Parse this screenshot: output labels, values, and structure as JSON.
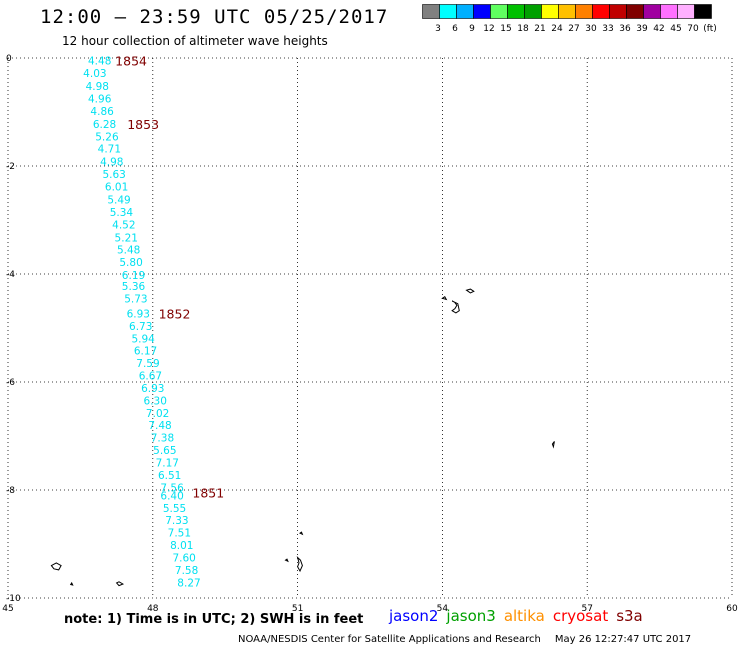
{
  "header": {
    "title": "12:00 – 23:59 UTC 05/25/2017",
    "subtitle": "12 hour collection of altimeter wave heights"
  },
  "legend": {
    "colors": [
      "#808080",
      "#00ffff",
      "#00b0ff",
      "#0000ff",
      "#60ff60",
      "#00c000",
      "#00a000",
      "#ffff00",
      "#ffc000",
      "#ff8000",
      "#ff0000",
      "#c00000",
      "#800000",
      "#a000a0",
      "#ff70ff",
      "#ffb0ff",
      "#000000"
    ],
    "labels": [
      "3",
      "6",
      "9",
      "12",
      "15",
      "18",
      "21",
      "24",
      "27",
      "30",
      "33",
      "36",
      "39",
      "42",
      "45",
      "70",
      "(ft)"
    ]
  },
  "chart_data": {
    "type": "scatter",
    "xlim": [
      45,
      60
    ],
    "ylim": [
      -10,
      0
    ],
    "xticks": [
      "45",
      "48",
      "51",
      "54",
      "57",
      "60"
    ],
    "yticks": [
      "0",
      "-2",
      "-4",
      "-6",
      "-8",
      "-10"
    ],
    "grid": true,
    "track_color": "#00e0f0",
    "time_color": "#800000",
    "points": [
      {
        "x": 46.9,
        "y": -0.05,
        "v": "4.48"
      },
      {
        "x": 46.8,
        "y": -0.28,
        "v": "4.03"
      },
      {
        "x": 46.85,
        "y": -0.52,
        "v": "4.98"
      },
      {
        "x": 46.9,
        "y": -0.75,
        "v": "4.96"
      },
      {
        "x": 46.95,
        "y": -0.98,
        "v": "4.86"
      },
      {
        "x": 47.0,
        "y": -1.22,
        "v": "6.28"
      },
      {
        "x": 47.05,
        "y": -1.45,
        "v": "5.26"
      },
      {
        "x": 47.1,
        "y": -1.68,
        "v": "4.71"
      },
      {
        "x": 47.15,
        "y": -1.92,
        "v": "4.98"
      },
      {
        "x": 47.2,
        "y": -2.15,
        "v": "5.63"
      },
      {
        "x": 47.25,
        "y": -2.38,
        "v": "6.01"
      },
      {
        "x": 47.3,
        "y": -2.62,
        "v": "5.49"
      },
      {
        "x": 47.35,
        "y": -2.85,
        "v": "5.34"
      },
      {
        "x": 47.4,
        "y": -3.08,
        "v": "4.52"
      },
      {
        "x": 47.45,
        "y": -3.32,
        "v": "5.21"
      },
      {
        "x": 47.5,
        "y": -3.55,
        "v": "5.48"
      },
      {
        "x": 47.55,
        "y": -3.78,
        "v": "5.80"
      },
      {
        "x": 47.6,
        "y": -4.02,
        "v": "6.19"
      },
      {
        "x": 47.6,
        "y": -4.22,
        "v": "5.36"
      },
      {
        "x": 47.65,
        "y": -4.45,
        "v": "5.73"
      },
      {
        "x": 47.7,
        "y": -4.73,
        "v": "6.93"
      },
      {
        "x": 47.75,
        "y": -4.96,
        "v": "6.73"
      },
      {
        "x": 47.8,
        "y": -5.19,
        "v": "5.94"
      },
      {
        "x": 47.85,
        "y": -5.42,
        "v": "6.17"
      },
      {
        "x": 47.9,
        "y": -5.65,
        "v": "7.59"
      },
      {
        "x": 47.95,
        "y": -5.88,
        "v": "6.67"
      },
      {
        "x": 48.0,
        "y": -6.11,
        "v": "6.93"
      },
      {
        "x": 48.05,
        "y": -6.34,
        "v": "6.30"
      },
      {
        "x": 48.1,
        "y": -6.57,
        "v": "7.02"
      },
      {
        "x": 48.15,
        "y": -6.8,
        "v": "7.48"
      },
      {
        "x": 48.2,
        "y": -7.03,
        "v": "7.38"
      },
      {
        "x": 48.25,
        "y": -7.26,
        "v": "5.65"
      },
      {
        "x": 48.3,
        "y": -7.49,
        "v": "7.17"
      },
      {
        "x": 48.35,
        "y": -7.72,
        "v": "6.51"
      },
      {
        "x": 48.4,
        "y": -7.95,
        "v": "7.56"
      },
      {
        "x": 48.4,
        "y": -8.1,
        "v": "6.40"
      },
      {
        "x": 48.45,
        "y": -8.33,
        "v": "5.55"
      },
      {
        "x": 48.5,
        "y": -8.56,
        "v": "7.33"
      },
      {
        "x": 48.55,
        "y": -8.79,
        "v": "7.51"
      },
      {
        "x": 48.6,
        "y": -9.02,
        "v": "8.01"
      },
      {
        "x": 48.65,
        "y": -9.25,
        "v": "7.60"
      },
      {
        "x": 48.7,
        "y": -9.48,
        "v": "7.58"
      },
      {
        "x": 48.75,
        "y": -9.71,
        "v": "8.27"
      }
    ],
    "time_labels": [
      {
        "x": 47.55,
        "y": -0.05,
        "t": "1854"
      },
      {
        "x": 47.8,
        "y": -1.22,
        "t": "1853"
      },
      {
        "x": 48.45,
        "y": -4.73,
        "t": "1852"
      },
      {
        "x": 49.15,
        "y": -8.05,
        "t": "1851"
      }
    ]
  },
  "islands": [
    [
      [
        45.9,
        -9.4
      ],
      [
        46.0,
        -9.35
      ],
      [
        46.1,
        -9.4
      ],
      [
        46.05,
        -9.48
      ],
      [
        45.95,
        -9.46
      ]
    ],
    [
      [
        46.3,
        -9.75
      ],
      [
        46.32,
        -9.72
      ],
      [
        46.34,
        -9.76
      ]
    ],
    [
      [
        47.25,
        -9.72
      ],
      [
        47.3,
        -9.7
      ],
      [
        47.38,
        -9.74
      ],
      [
        47.3,
        -9.77
      ]
    ],
    [
      [
        51.0,
        -9.25
      ],
      [
        51.06,
        -9.3
      ],
      [
        51.1,
        -9.4
      ],
      [
        51.05,
        -9.5
      ],
      [
        51.0,
        -9.42
      ],
      [
        51.03,
        -9.35
      ]
    ],
    [
      [
        50.75,
        -9.3
      ],
      [
        50.78,
        -9.28
      ],
      [
        50.8,
        -9.32
      ]
    ],
    [
      [
        51.05,
        -8.8
      ],
      [
        51.08,
        -8.78
      ],
      [
        51.1,
        -8.82
      ]
    ],
    [
      [
        54.2,
        -4.5
      ],
      [
        54.25,
        -4.52
      ],
      [
        54.3,
        -4.58
      ],
      [
        54.26,
        -4.64
      ],
      [
        54.2,
        -4.68
      ],
      [
        54.28,
        -4.72
      ],
      [
        54.35,
        -4.68
      ],
      [
        54.32,
        -4.55
      ]
    ],
    [
      [
        54.0,
        -4.45
      ],
      [
        54.05,
        -4.42
      ],
      [
        54.08,
        -4.47
      ]
    ],
    [
      [
        54.5,
        -4.3
      ],
      [
        54.58,
        -4.28
      ],
      [
        54.65,
        -4.32
      ],
      [
        54.58,
        -4.35
      ]
    ],
    [
      [
        56.28,
        -7.15
      ],
      [
        56.32,
        -7.1
      ],
      [
        56.3,
        -7.2
      ]
    ]
  ],
  "note": "note:  1) Time is in UTC;  2) SWH is in feet",
  "satellites": [
    {
      "name": "jason2",
      "color": "#0000ff"
    },
    {
      "name": "jason3",
      "color": "#00a000"
    },
    {
      "name": "altika",
      "color": "#ff9000"
    },
    {
      "name": "cryosat",
      "color": "#ff0000"
    },
    {
      "name": "s3a",
      "color": "#800000"
    }
  ],
  "footer": {
    "org": "NOAA/NESDIS Center for Satellite Applications and Research",
    "timestamp": "May 26 12:27:47 UTC 2017"
  }
}
